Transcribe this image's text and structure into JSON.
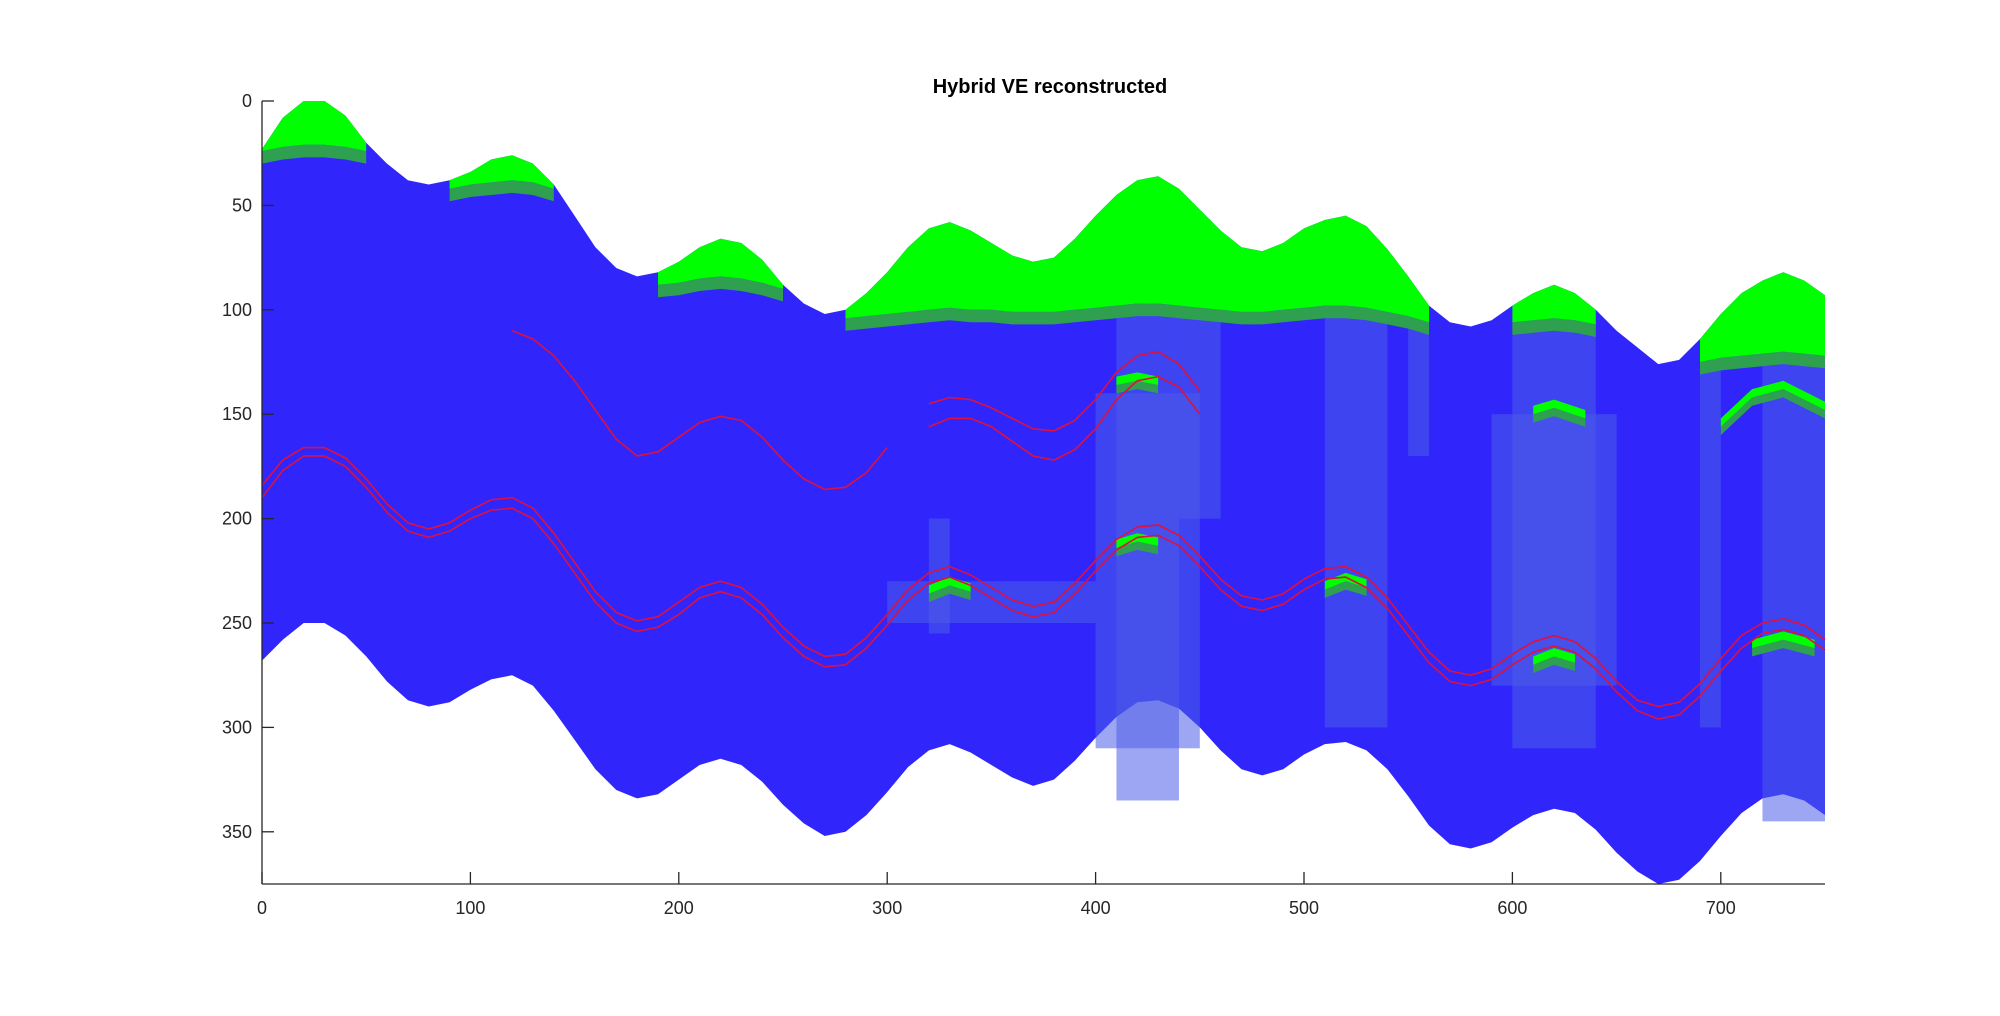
{
  "chart_data": {
    "type": "area",
    "title": "Hybrid VE reconstructed",
    "xlabel": "",
    "ylabel": "",
    "xlim": [
      0,
      750
    ],
    "ylim": [
      0,
      375
    ],
    "y_reversed": true,
    "grid": false,
    "xticks": [
      0,
      100,
      200,
      300,
      400,
      500,
      600,
      700
    ],
    "yticks": [
      0,
      50,
      100,
      150,
      200,
      250,
      300,
      350
    ],
    "colors": {
      "domain": "#3026fc",
      "gas": "#00ff00",
      "transition": "#2fa050",
      "overlay": "#4d5ce8",
      "surface": "#e0103c"
    },
    "domain_top": {
      "x": [
        0,
        10,
        20,
        30,
        40,
        50,
        60,
        70,
        80,
        90,
        100,
        110,
        120,
        130,
        140,
        150,
        160,
        170,
        180,
        190,
        200,
        210,
        220,
        230,
        240,
        250,
        260,
        270,
        280,
        290,
        300,
        310,
        320,
        330,
        340,
        350,
        360,
        370,
        380,
        390,
        400,
        410,
        420,
        430,
        440,
        450,
        460,
        470,
        480,
        490,
        500,
        510,
        520,
        530,
        540,
        550,
        560,
        570,
        580,
        590,
        600,
        610,
        620,
        630,
        640,
        650,
        660,
        670,
        680,
        690,
        700,
        710,
        720,
        730,
        740,
        750
      ],
      "y": [
        23,
        8,
        0,
        0,
        7,
        20,
        30,
        38,
        40,
        38,
        34,
        28,
        26,
        30,
        40,
        55,
        70,
        80,
        84,
        82,
        77,
        70,
        66,
        68,
        76,
        88,
        97,
        102,
        100,
        92,
        82,
        70,
        61,
        58,
        62,
        68,
        74,
        77,
        75,
        66,
        55,
        45,
        38,
        36,
        42,
        52,
        62,
        70,
        72,
        68,
        61,
        57,
        55,
        60,
        71,
        84,
        98,
        106,
        108,
        105,
        98,
        92,
        88,
        92,
        100,
        110,
        118,
        126,
        124,
        114,
        102,
        92,
        86,
        82,
        86,
        93
      ]
    },
    "domain_bottom": {
      "x": [
        0,
        10,
        20,
        30,
        40,
        50,
        60,
        70,
        80,
        90,
        100,
        110,
        120,
        130,
        140,
        150,
        160,
        170,
        180,
        190,
        200,
        210,
        220,
        230,
        240,
        250,
        260,
        270,
        280,
        290,
        300,
        310,
        320,
        330,
        340,
        350,
        360,
        370,
        380,
        390,
        400,
        410,
        420,
        430,
        440,
        450,
        460,
        470,
        480,
        490,
        500,
        510,
        520,
        530,
        540,
        550,
        560,
        570,
        580,
        590,
        600,
        610,
        620,
        630,
        640,
        650,
        660,
        670,
        680,
        690,
        700,
        710,
        720,
        730,
        740,
        750
      ],
      "y": [
        268,
        258,
        250,
        250,
        256,
        266,
        278,
        287,
        290,
        288,
        282,
        277,
        275,
        280,
        292,
        306,
        320,
        330,
        334,
        332,
        325,
        318,
        315,
        318,
        326,
        337,
        346,
        352,
        350,
        342,
        331,
        319,
        311,
        308,
        312,
        318,
        324,
        328,
        325,
        316,
        305,
        295,
        288,
        287,
        291,
        300,
        311,
        320,
        323,
        320,
        313,
        308,
        307,
        311,
        320,
        333,
        347,
        356,
        358,
        355,
        348,
        342,
        339,
        341,
        349,
        360,
        369,
        375,
        373,
        364,
        352,
        341,
        334,
        332,
        335,
        342
      ]
    },
    "gas_caps": [
      {
        "x": [
          0,
          10,
          20,
          30,
          40,
          50
        ],
        "top": [
          23,
          8,
          0,
          0,
          7,
          20
        ],
        "bottom": [
          24,
          22,
          21,
          21,
          22,
          24
        ]
      },
      {
        "x": [
          90,
          100,
          110,
          120,
          130,
          140
        ],
        "top": [
          38,
          34,
          28,
          26,
          30,
          40
        ],
        "bottom": [
          42,
          40,
          39,
          38,
          39,
          42
        ]
      },
      {
        "x": [
          190,
          200,
          210,
          220,
          230,
          240,
          250
        ],
        "top": [
          82,
          77,
          70,
          66,
          68,
          76,
          88
        ],
        "bottom": [
          88,
          87,
          85,
          84,
          85,
          87,
          90
        ]
      },
      {
        "x": [
          280,
          290,
          300,
          310,
          320,
          330,
          340,
          350,
          360,
          370,
          380,
          390,
          400,
          410,
          420,
          430,
          440,
          450,
          460,
          470,
          480,
          490,
          500,
          510,
          520,
          530,
          540,
          550,
          560
        ],
        "top": [
          100,
          92,
          82,
          70,
          61,
          58,
          62,
          68,
          74,
          77,
          75,
          66,
          55,
          45,
          38,
          36,
          42,
          52,
          62,
          70,
          72,
          68,
          61,
          57,
          55,
          60,
          71,
          84,
          98
        ],
        "bottom": [
          104,
          103,
          102,
          101,
          100,
          99,
          100,
          100,
          101,
          101,
          101,
          100,
          99,
          98,
          97,
          97,
          98,
          99,
          100,
          101,
          101,
          100,
          99,
          98,
          98,
          99,
          101,
          103,
          106
        ]
      },
      {
        "x": [
          600,
          610,
          620,
          630,
          640
        ],
        "top": [
          98,
          92,
          88,
          92,
          100
        ],
        "bottom": [
          106,
          105,
          104,
          105,
          107
        ]
      },
      {
        "x": [
          690,
          700,
          710,
          720,
          730,
          740,
          750
        ],
        "top": [
          114,
          102,
          92,
          86,
          82,
          86,
          93
        ],
        "bottom": [
          125,
          123,
          122,
          121,
          120,
          121,
          122
        ]
      }
    ],
    "inner_gas": [
      {
        "x": [
          410,
          420,
          430
        ],
        "top": [
          132,
          130,
          132
        ],
        "bottom": [
          136,
          134,
          136
        ]
      },
      {
        "x": [
          410,
          420,
          430
        ],
        "top": [
          210,
          207,
          209
        ],
        "bottom": [
          214,
          211,
          213
        ]
      },
      {
        "x": [
          320,
          330,
          340
        ],
        "top": [
          232,
          228,
          231
        ],
        "bottom": [
          236,
          232,
          235
        ]
      },
      {
        "x": [
          510,
          520,
          530
        ],
        "top": [
          230,
          226,
          229
        ],
        "bottom": [
          234,
          230,
          233
        ]
      },
      {
        "x": [
          610,
          620,
          630
        ],
        "top": [
          266,
          262,
          265
        ],
        "bottom": [
          270,
          266,
          269
        ]
      },
      {
        "x": [
          715,
          730,
          745
        ],
        "top": [
          258,
          254,
          258
        ],
        "bottom": [
          262,
          258,
          262
        ]
      },
      {
        "x": [
          610,
          620,
          635
        ],
        "top": [
          146,
          143,
          148
        ],
        "bottom": [
          150,
          147,
          152
        ]
      },
      {
        "x": [
          700,
          715,
          730,
          750
        ],
        "top": [
          152,
          138,
          134,
          144
        ],
        "bottom": [
          156,
          142,
          138,
          148
        ]
      }
    ],
    "overlay_columns": [
      {
        "x": [
          410,
          440
        ],
        "y": [
          100,
          335
        ]
      },
      {
        "x": [
          400,
          450
        ],
        "y": [
          140,
          310
        ]
      },
      {
        "x": [
          440,
          460
        ],
        "y": [
          100,
          200
        ]
      },
      {
        "x": [
          510,
          540
        ],
        "y": [
          100,
          300
        ]
      },
      {
        "x": [
          550,
          560
        ],
        "y": [
          100,
          170
        ]
      },
      {
        "x": [
          600,
          640
        ],
        "y": [
          105,
          310
        ]
      },
      {
        "x": [
          590,
          650
        ],
        "y": [
          150,
          280
        ]
      },
      {
        "x": [
          690,
          700
        ],
        "y": [
          125,
          300
        ]
      },
      {
        "x": [
          720,
          750
        ],
        "y": [
          120,
          345
        ]
      },
      {
        "x": [
          320,
          330
        ],
        "y": [
          200,
          255
        ]
      },
      {
        "x": [
          300,
          400
        ],
        "y": [
          230,
          250
        ]
      }
    ],
    "surfaces": [
      {
        "x": [
          120,
          130,
          140,
          150,
          160,
          170,
          180,
          190,
          200,
          210,
          220,
          230,
          240,
          250,
          260,
          270,
          280,
          290,
          300
        ],
        "y": [
          110,
          114,
          122,
          134,
          148,
          162,
          170,
          168,
          161,
          154,
          151,
          153,
          161,
          172,
          181,
          186,
          185,
          178,
          166
        ]
      },
      {
        "x": [
          320,
          330,
          340,
          350,
          360,
          370,
          380,
          390,
          400,
          410,
          420,
          430,
          440,
          450
        ],
        "y": [
          145,
          142,
          143,
          147,
          152,
          157,
          158,
          153,
          143,
          130,
          122,
          120,
          126,
          139
        ]
      },
      {
        "x": [
          320,
          330,
          340,
          350,
          360,
          370,
          380,
          390,
          400,
          410,
          420,
          430,
          440,
          450
        ],
        "y": [
          156,
          152,
          152,
          156,
          163,
          170,
          172,
          167,
          157,
          143,
          134,
          132,
          137,
          150
        ]
      },
      {
        "x": [
          0,
          10,
          20,
          30,
          40,
          50,
          60,
          70,
          80,
          90,
          100,
          110,
          120,
          130,
          140,
          150,
          160,
          170,
          180,
          190,
          200,
          210,
          220,
          230,
          240,
          250,
          260,
          270,
          280,
          290,
          300,
          310,
          320,
          330,
          340,
          350,
          360,
          370,
          380,
          390,
          400,
          410,
          420,
          430,
          440,
          450,
          460,
          470,
          480,
          490,
          500,
          510,
          520,
          530,
          540,
          550,
          560,
          570,
          580,
          590,
          600,
          610,
          620,
          630,
          640,
          650,
          660,
          670,
          680,
          690,
          700,
          710,
          720,
          730,
          740,
          750
        ],
        "y": [
          184,
          172,
          166,
          166,
          171,
          181,
          193,
          202,
          205,
          202,
          196,
          191,
          190,
          195,
          207,
          221,
          235,
          245,
          249,
          247,
          240,
          233,
          230,
          233,
          241,
          252,
          261,
          266,
          265,
          257,
          246,
          234,
          226,
          223,
          227,
          233,
          239,
          242,
          240,
          231,
          220,
          210,
          204,
          203,
          208,
          218,
          229,
          237,
          239,
          236,
          229,
          224,
          223,
          228,
          238,
          251,
          264,
          273,
          275,
          272,
          265,
          259,
          256,
          259,
          267,
          278,
          287,
          290,
          288,
          279,
          267,
          256,
          250,
          248,
          251,
          258
        ]
      },
      {
        "x": [
          0,
          10,
          20,
          30,
          40,
          50,
          60,
          70,
          80,
          90,
          100,
          110,
          120,
          130,
          140,
          150,
          160,
          170,
          180,
          190,
          200,
          210,
          220,
          230,
          240,
          250,
          260,
          270,
          280,
          290,
          300,
          310,
          320,
          330,
          340,
          350,
          360,
          370,
          380,
          390,
          400,
          410,
          420,
          430,
          440,
          450,
          460,
          470,
          480,
          490,
          500,
          510,
          520,
          530,
          540,
          550,
          560,
          570,
          580,
          590,
          600,
          610,
          620,
          630,
          640,
          650,
          660,
          670,
          680,
          690,
          700,
          710,
          720,
          730,
          740,
          750
        ],
        "y": [
          190,
          177,
          170,
          170,
          175,
          185,
          197,
          206,
          209,
          206,
          200,
          196,
          195,
          200,
          212,
          226,
          240,
          250,
          254,
          252,
          246,
          238,
          235,
          238,
          246,
          257,
          266,
          271,
          270,
          262,
          251,
          239,
          231,
          228,
          232,
          238,
          244,
          247,
          245,
          236,
          225,
          215,
          209,
          208,
          213,
          223,
          234,
          242,
          244,
          241,
          234,
          229,
          228,
          233,
          243,
          256,
          269,
          278,
          280,
          277,
          270,
          264,
          261,
          264,
          272,
          283,
          292,
          296,
          294,
          285,
          273,
          262,
          255,
          253,
          256,
          263
        ]
      }
    ]
  }
}
